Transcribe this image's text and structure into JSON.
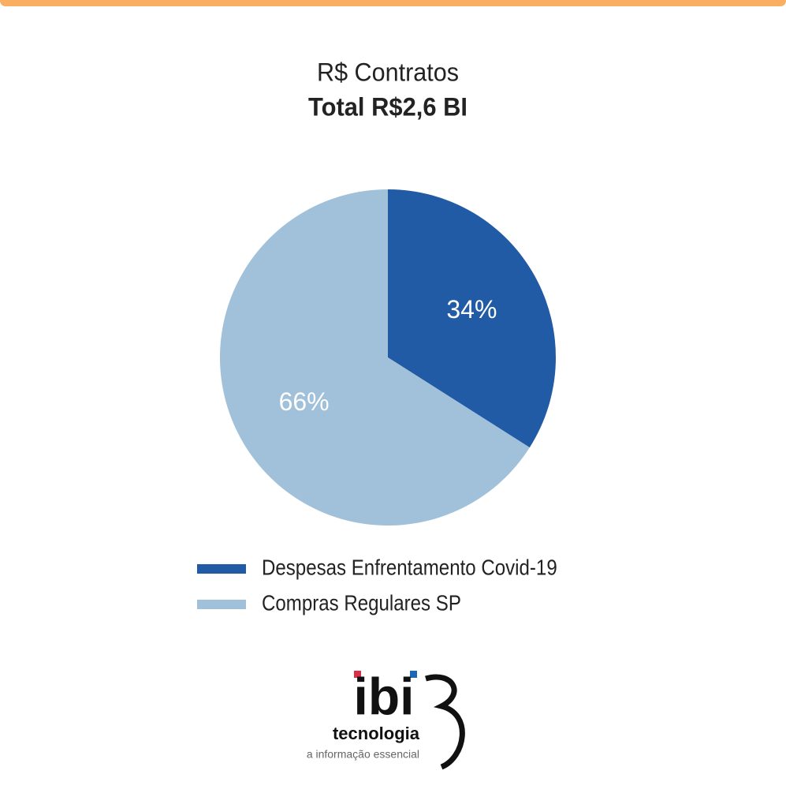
{
  "chart_data": {
    "type": "pie",
    "title": "R$ Contratos",
    "subtitle": "Total R$2,6 BI",
    "categories": [
      "Despesas Enfrentamento Covid-19",
      "Compras Regulares SP"
    ],
    "values": [
      34,
      66
    ],
    "value_labels": [
      "34%",
      "66%"
    ],
    "colors": [
      "#215aa5",
      "#a0c1d9"
    ]
  },
  "logo": {
    "mark": "ibi",
    "word": "tecnologia",
    "slogan": "a informação essencial"
  }
}
